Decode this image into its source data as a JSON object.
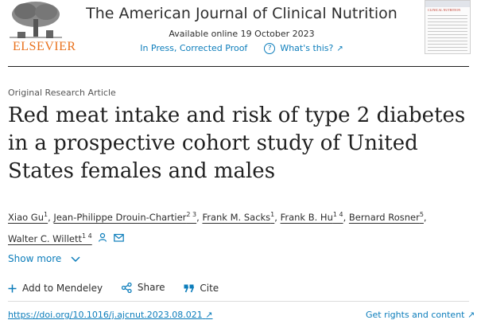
{
  "header": {
    "publisher_logo_text": "ELSEVIER",
    "journal_title": "The American Journal of Clinical Nutrition",
    "available_online": "Available online 19 October 2023",
    "status": "In Press, Corrected Proof",
    "whats_this": "What's this?",
    "cover_title": "CLINICAL NUTRITION",
    "link_color": "#0c7dbb",
    "brand_color": "#e9711c"
  },
  "article": {
    "type": "Original Research Article",
    "title": "Red meat intake and risk of type 2 diabetes in a prospective cohort study of United States females and males",
    "authors": [
      {
        "name": "Xiao Gu",
        "aff": "1"
      },
      {
        "name": "Jean-Philippe Drouin-Chartier",
        "aff": "2 3"
      },
      {
        "name": "Frank M. Sacks",
        "aff": "1"
      },
      {
        "name": "Frank B. Hu",
        "aff": "1 4"
      },
      {
        "name": "Bernard Rosner",
        "aff": "5"
      },
      {
        "name": "Walter C. Willett",
        "aff": "1 4"
      }
    ],
    "show_more": "Show more"
  },
  "actions": {
    "mendeley": "Add to Mendeley",
    "share": "Share",
    "cite": "Cite"
  },
  "footer": {
    "doi": "https://doi.org/10.1016/j.ajcnut.2023.08.021",
    "rights": "Get rights and content"
  },
  "icons": [
    "elsevier-tree-icon",
    "question-icon",
    "external-link-icon",
    "person-icon",
    "mail-icon",
    "chevron-down-icon",
    "plus-icon",
    "share-icon",
    "quote-icon"
  ]
}
